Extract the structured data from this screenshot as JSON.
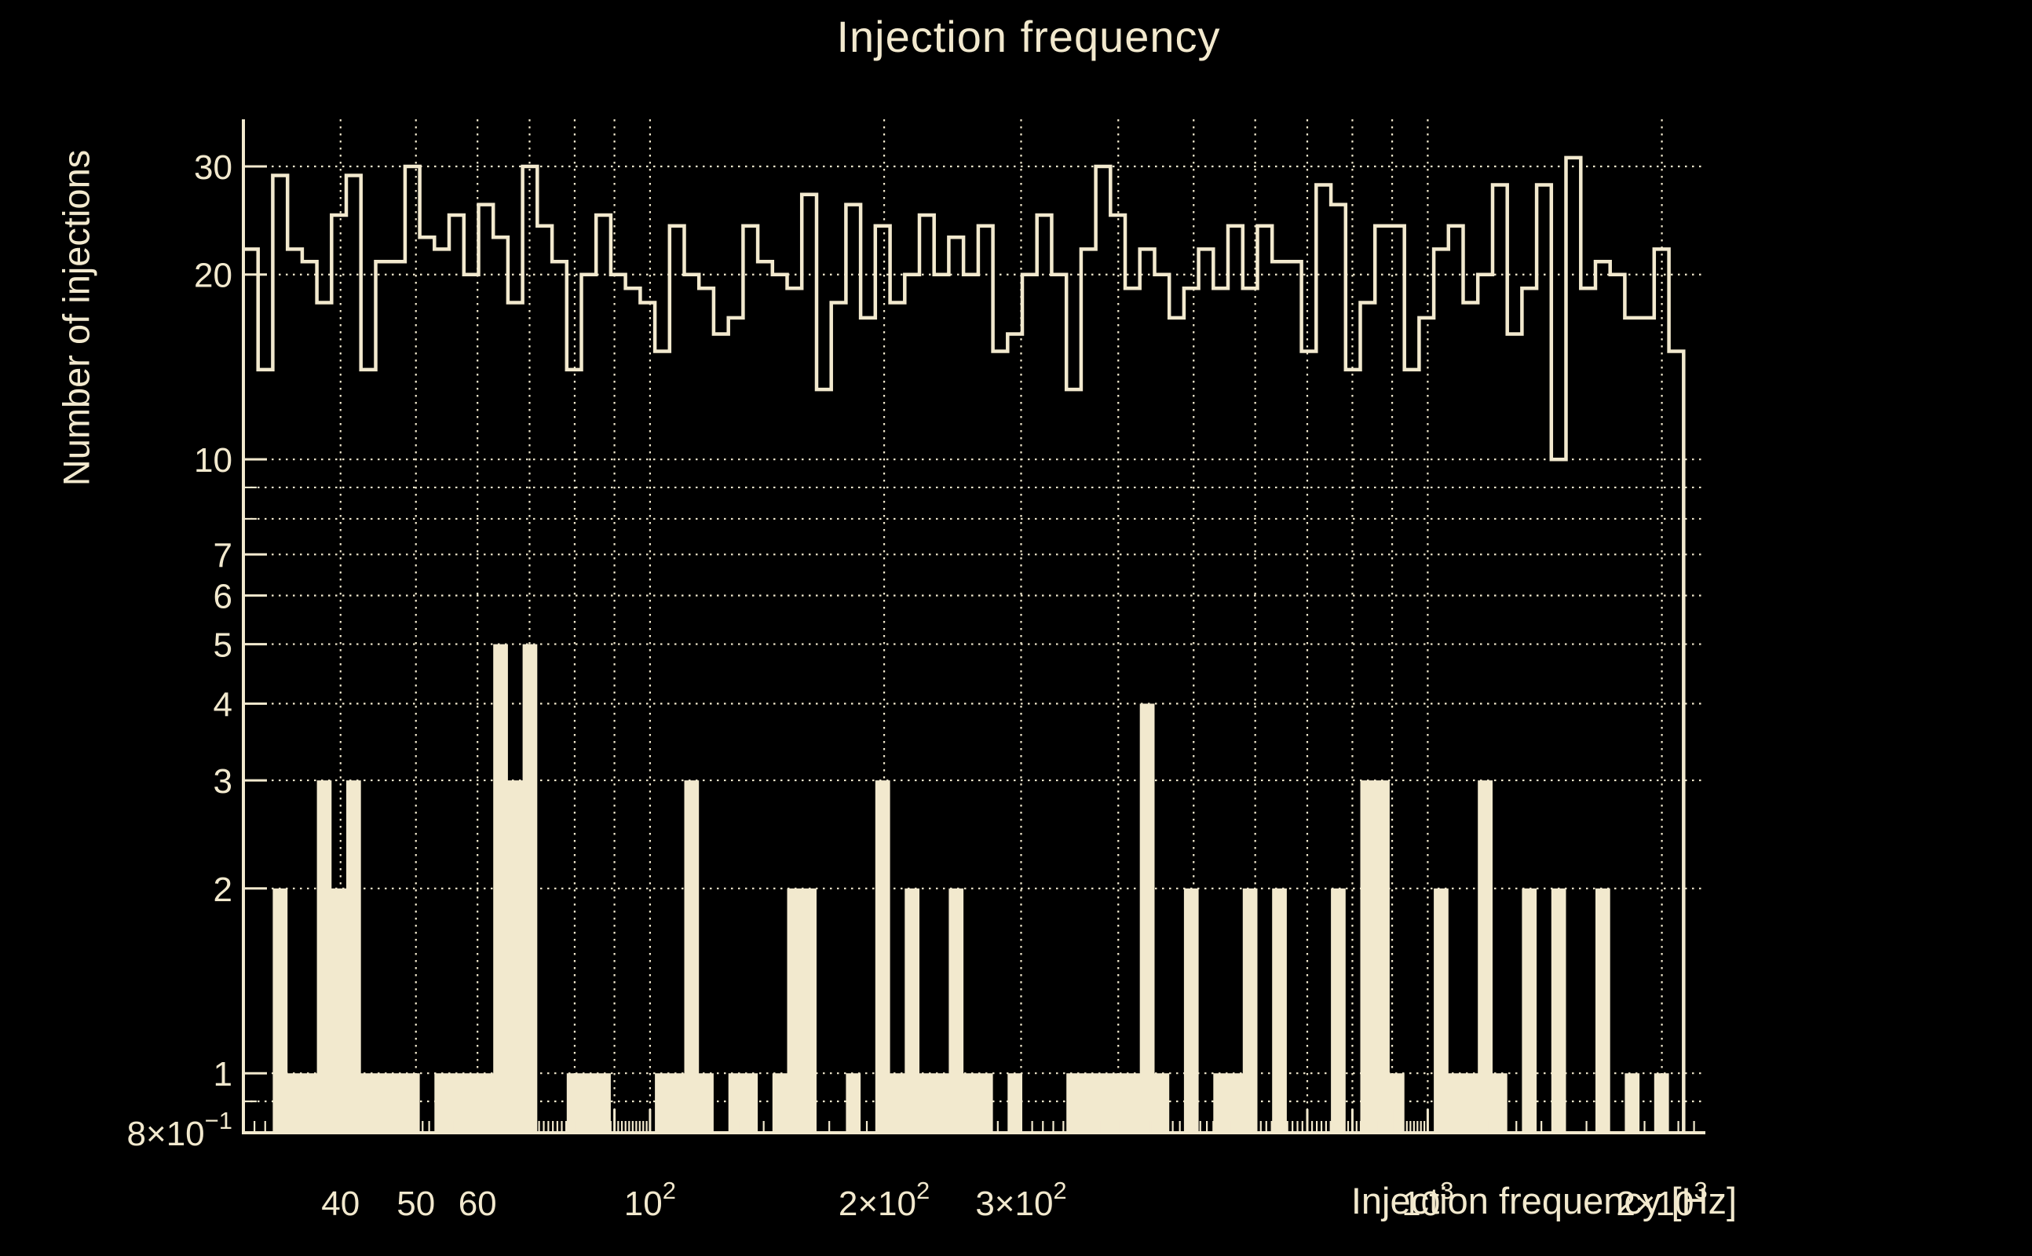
{
  "title": "Injection frequency",
  "colors": {
    "background": "#000000",
    "foreground": "#f2e9ce"
  },
  "chart_data": {
    "type": "histogram",
    "title": "Injection frequency",
    "xlabel": "Injection frequency [Hz]",
    "ylabel": "Number of injections",
    "x_scale": "log",
    "y_scale": "log",
    "xlim": [
      30,
      2275
    ],
    "ylim": [
      0.8,
      35.8
    ],
    "grid": true,
    "legend": "none",
    "bins": {
      "count": 98,
      "min_hz": 30,
      "max_hz": 2133,
      "spacing": "log"
    },
    "series": [
      {
        "name": "injections-outline-step",
        "type": "step",
        "values": [
          22,
          14,
          29,
          22,
          21,
          18,
          25,
          29,
          14,
          21,
          21,
          30,
          23,
          22,
          25,
          20,
          26,
          23,
          18,
          30,
          24,
          21,
          14,
          20,
          25,
          20,
          19,
          18,
          15,
          24,
          20,
          19,
          16,
          17,
          24,
          21,
          20,
          19,
          27,
          13,
          18,
          26,
          17,
          24,
          18,
          20,
          25,
          20,
          23,
          20,
          24,
          15,
          16,
          20,
          25,
          20,
          13,
          22,
          30,
          25,
          19,
          22,
          20,
          17,
          19,
          22,
          19,
          24,
          19,
          24,
          21,
          21,
          15,
          28,
          26,
          14,
          18,
          24,
          24,
          14,
          17,
          22,
          24,
          18,
          20,
          28,
          16,
          19,
          28,
          10,
          31,
          19,
          21,
          20,
          17,
          17,
          22,
          15
        ]
      },
      {
        "name": "injections-filled-bars",
        "type": "bar",
        "values": [
          0,
          0,
          2,
          1,
          1,
          3,
          2,
          3,
          1,
          1,
          1,
          1,
          0,
          1,
          1,
          1,
          1,
          5,
          3,
          5,
          0,
          0,
          1,
          1,
          1,
          0,
          0,
          0,
          1,
          1,
          3,
          1,
          0,
          1,
          1,
          0,
          1,
          2,
          2,
          0,
          0,
          1,
          0,
          3,
          1,
          2,
          1,
          1,
          2,
          1,
          1,
          0,
          1,
          0,
          0,
          0,
          1,
          1,
          1,
          1,
          1,
          4,
          1,
          0,
          2,
          0,
          1,
          1,
          2,
          0,
          2,
          0,
          0,
          0,
          2,
          0,
          3,
          3,
          1,
          0,
          0,
          2,
          1,
          1,
          3,
          1,
          0,
          2,
          0,
          2,
          0,
          0,
          2,
          0,
          1,
          0,
          1,
          0
        ]
      }
    ],
    "x_ticks": [
      {
        "base": "40",
        "value": 40
      },
      {
        "base": "50",
        "value": 50
      },
      {
        "base": "60",
        "value": 60
      },
      {
        "base": "10",
        "exp": "2",
        "value": 100
      },
      {
        "base": "2×10",
        "exp": "2",
        "value": 200
      },
      {
        "base": "3×10",
        "exp": "2",
        "value": 300
      },
      {
        "base": "10",
        "exp": "3",
        "value": 1000
      },
      {
        "base": "2×10",
        "exp": "3",
        "value": 2000
      }
    ],
    "y_ticks": [
      {
        "base": "30",
        "value": 30
      },
      {
        "base": "20",
        "value": 20
      },
      {
        "base": "10",
        "value": 10
      },
      {
        "base": "7",
        "value": 7
      },
      {
        "base": "6",
        "value": 6
      },
      {
        "base": "5",
        "value": 5
      },
      {
        "base": "4",
        "value": 4
      },
      {
        "base": "3",
        "value": 3
      },
      {
        "base": "2",
        "value": 2
      },
      {
        "base": "1",
        "value": 1
      },
      {
        "base": "8×10",
        "exp": "−1",
        "value": 0.8
      }
    ],
    "x_gridlines": [
      40,
      50,
      60,
      70,
      80,
      90,
      100,
      200,
      300,
      400,
      500,
      600,
      700,
      800,
      900,
      1000,
      2000
    ],
    "y_gridlines": [
      0.9,
      1,
      2,
      3,
      4,
      5,
      6,
      7,
      8,
      9,
      10,
      20,
      30
    ]
  }
}
